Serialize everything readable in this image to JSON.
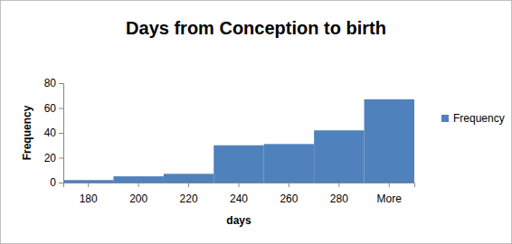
{
  "chart_data": {
    "type": "bar",
    "title": "Days from Conception to birth",
    "x_label": "days",
    "y_label": "Frequency",
    "categories": [
      "180",
      "200",
      "220",
      "240",
      "260",
      "280",
      "More"
    ],
    "series": [
      {
        "name": "Frequency",
        "color": "#4f81bd",
        "values": [
          2,
          5,
          7,
          30,
          31,
          42,
          67
        ]
      }
    ],
    "ylim": [
      0,
      80
    ],
    "yticks": [
      0,
      20,
      40,
      60,
      80
    ],
    "grid": false,
    "legend": "right"
  }
}
